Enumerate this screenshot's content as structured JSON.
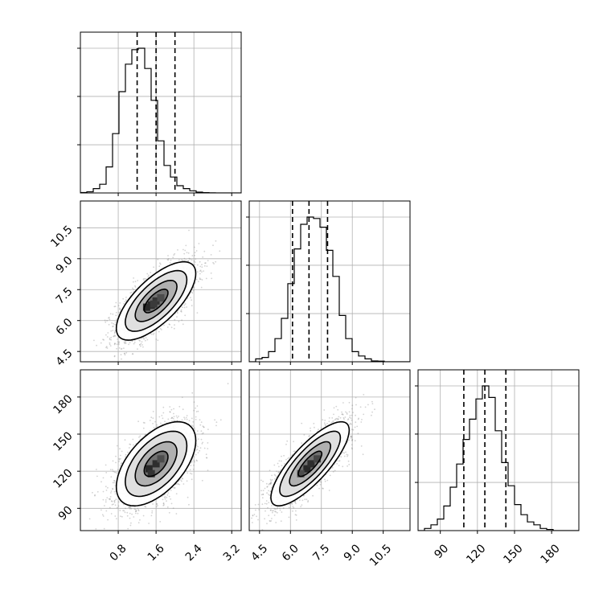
{
  "chart_data": {
    "type": "corner",
    "grid": true,
    "colors": {
      "line": "#000000",
      "grid": "#b0b0b0",
      "scatter": "#808080"
    },
    "params": [
      {
        "ticks": [
          0.8,
          1.6,
          2.4,
          3.2
        ],
        "tick_labels": [
          "0.8",
          "1.6",
          "2.4",
          "3.2"
        ],
        "range": [
          0.0,
          3.4
        ],
        "quantiles": [
          1.2,
          1.6,
          2.0
        ],
        "hist": {
          "bin_start": 0.0,
          "bin_width": 0.136,
          "counts": [
            0.003,
            0.008,
            0.03,
            0.06,
            0.18,
            0.41,
            0.7,
            0.89,
            0.99,
            1.0,
            0.86,
            0.64,
            0.36,
            0.19,
            0.11,
            0.05,
            0.03,
            0.015,
            0.006,
            0.002,
            0.001,
            0.0,
            0.0,
            0.0,
            0.0
          ]
        }
      },
      {
        "ticks": [
          4.5,
          6.0,
          7.5,
          9.0,
          10.5
        ],
        "tick_labels": [
          "4.5",
          "6.0",
          "7.5",
          "9.0",
          "10.5"
        ],
        "range": [
          4.0,
          11.8
        ],
        "quantiles": [
          6.1,
          6.9,
          7.8
        ],
        "hist": {
          "bin_start": 4.0,
          "bin_width": 0.312,
          "counts": [
            0.0,
            0.02,
            0.03,
            0.07,
            0.16,
            0.3,
            0.54,
            0.78,
            0.95,
            1.0,
            0.99,
            0.93,
            0.77,
            0.59,
            0.32,
            0.16,
            0.07,
            0.04,
            0.02,
            0.006,
            0.004,
            0.0,
            0.0,
            0.0,
            0.0
          ]
        }
      },
      {
        "ticks": [
          90,
          120,
          150,
          180
        ],
        "tick_labels": [
          "90",
          "120",
          "150",
          "180"
        ],
        "range": [
          72,
          202
        ],
        "quantiles": [
          109,
          126,
          143
        ],
        "hist": {
          "bin_start": 72,
          "bin_width": 5.2,
          "counts": [
            0.0,
            0.015,
            0.04,
            0.08,
            0.17,
            0.3,
            0.46,
            0.63,
            0.77,
            0.91,
            1.0,
            0.92,
            0.69,
            0.47,
            0.31,
            0.18,
            0.11,
            0.06,
            0.04,
            0.015,
            0.008,
            0.0,
            0.0,
            0.0,
            0.0
          ]
        }
      }
    ],
    "pairs": [
      {
        "x": 0,
        "y": 1,
        "mean": [
          1.6,
          6.95
        ],
        "sd": [
          0.42,
          0.95
        ],
        "corr": 0.7,
        "density": [
          [
            1.4,
            6.65,
            1.0
          ],
          [
            1.5,
            6.75,
            1.0
          ],
          [
            1.6,
            6.95,
            0.9
          ],
          [
            1.55,
            6.8,
            0.85
          ],
          [
            1.7,
            7.1,
            0.7
          ]
        ]
      },
      {
        "x": 0,
        "y": 2,
        "mean": [
          1.6,
          126
        ],
        "sd": [
          0.42,
          17
        ],
        "corr": 0.55,
        "density": [
          [
            1.45,
            122,
            1.0
          ],
          [
            1.6,
            126,
            0.95
          ],
          [
            1.5,
            118,
            0.9
          ],
          [
            1.7,
            130,
            0.7
          ]
        ]
      },
      {
        "x": 1,
        "y": 2,
        "mean": [
          6.95,
          126
        ],
        "sd": [
          0.95,
          17
        ],
        "corr": 0.8,
        "density": [
          [
            6.8,
            122,
            1.0
          ],
          [
            7.0,
            126,
            0.95
          ],
          [
            7.3,
            130,
            0.75
          ],
          [
            6.5,
            118,
            0.7
          ]
        ]
      }
    ]
  }
}
